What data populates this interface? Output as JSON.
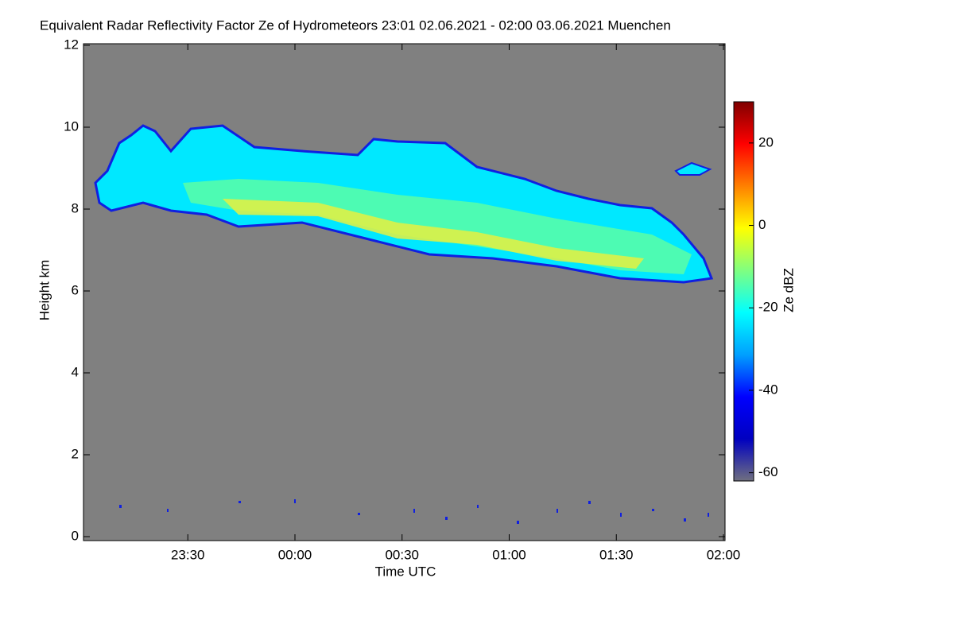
{
  "chart_data": {
    "type": "heatmap",
    "title": "Equivalent Radar Reflectivity Factor Ze of Hydrometeors   23:01 02.06.2021 - 02:00 03.06.2021 Muenchen",
    "x_label": "Time UTC",
    "y_label": "Height km",
    "colorbar_label": "Ze dBZ",
    "xlim": [
      "2021-06-02T23:01",
      "2021-06-03T02:00"
    ],
    "xticks": [
      {
        "value": "2021-06-02T23:30",
        "label": "23:30"
      },
      {
        "value": "2021-06-03T00:00",
        "label": "00:00"
      },
      {
        "value": "2021-06-03T00:30",
        "label": "00:30"
      },
      {
        "value": "2021-06-03T01:00",
        "label": "01:00"
      },
      {
        "value": "2021-06-03T01:30",
        "label": "01:30"
      },
      {
        "value": "2021-06-03T02:00",
        "label": "02:00"
      }
    ],
    "ylim": [
      0,
      12
    ],
    "yticks": [
      0,
      2,
      4,
      6,
      8,
      10,
      12
    ],
    "clim": [
      -62,
      30
    ],
    "cticks": [
      -60,
      -40,
      -20,
      0,
      20
    ],
    "background": "#808080",
    "colormap": [
      "#707080",
      "#0000c0",
      "#0000ff",
      "#00a0ff",
      "#00ffff",
      "#80ff80",
      "#ffff00",
      "#ff8000",
      "#ff0000",
      "#800000"
    ]
  }
}
